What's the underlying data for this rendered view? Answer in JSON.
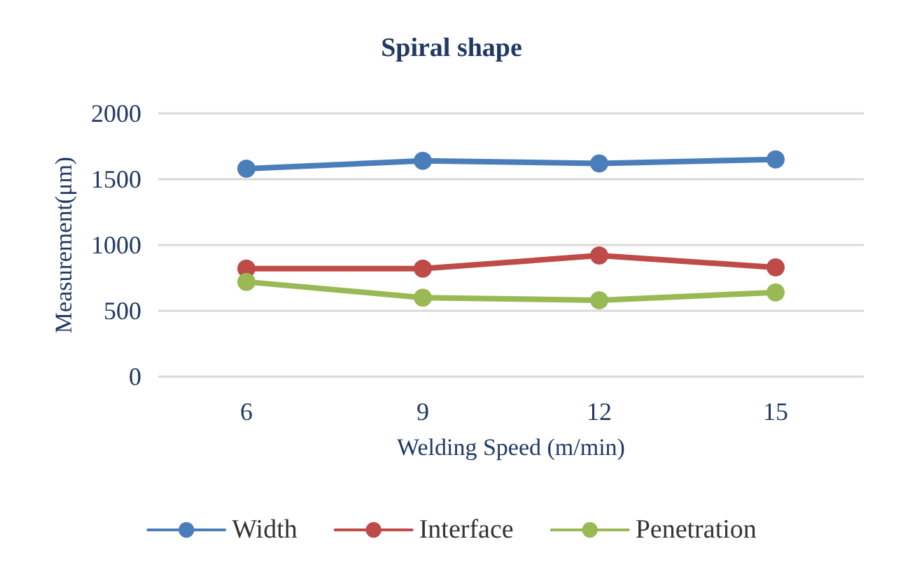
{
  "chart_data": {
    "type": "line",
    "title": "Spiral shape",
    "xlabel": "Welding Speed (m/min)",
    "ylabel": "Measurement(μm)",
    "categories": [
      "6",
      "9",
      "12",
      "15"
    ],
    "series": [
      {
        "name": "Width",
        "color": "#4a7ebb",
        "values": [
          1580,
          1640,
          1620,
          1650
        ]
      },
      {
        "name": "Interface",
        "color": "#be4b48",
        "values": [
          820,
          820,
          920,
          830
        ]
      },
      {
        "name": "Penetration",
        "color": "#98b954",
        "values": [
          720,
          600,
          580,
          640
        ]
      }
    ],
    "ylim": [
      0,
      2000
    ],
    "yticks": [
      0,
      500,
      1000,
      1500,
      2000
    ],
    "grid": "y",
    "legend": "bottom",
    "marker": "circle",
    "line_style": "solid"
  }
}
